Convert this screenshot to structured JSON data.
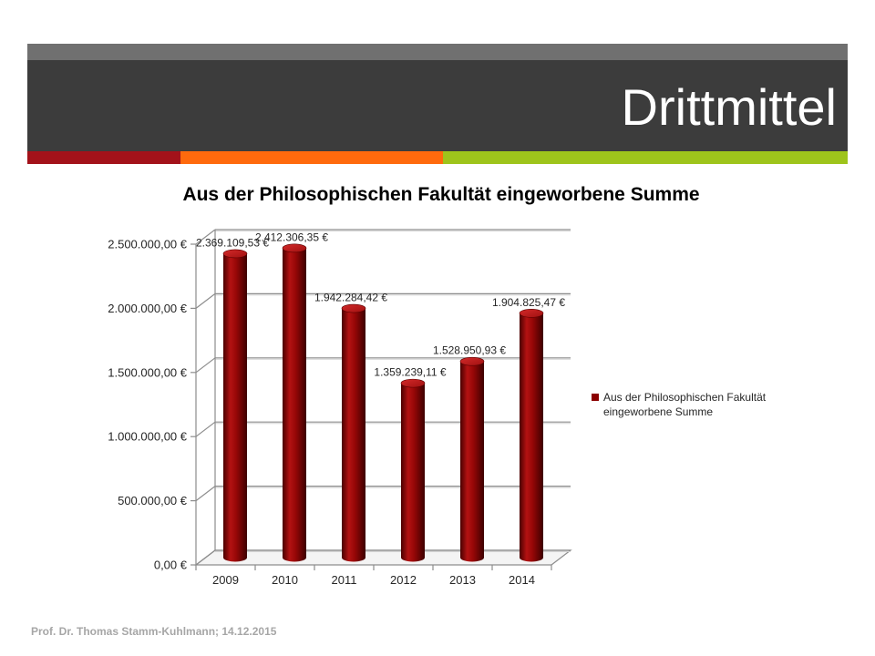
{
  "slide": {
    "title": "Drittmittel",
    "footer": "Prof. Dr. Thomas Stamm-Kuhlmann; 14.12.2015"
  },
  "theme": {
    "header_top": "#707070",
    "header": "#3c3c3c",
    "title_color": "#ffffff",
    "stripe": [
      "#a3121a",
      "#ff6a0d",
      "#9ec41b"
    ]
  },
  "chart_data": {
    "type": "bar",
    "style": "3d-cylinder",
    "title": "Aus der Philosophischen Fakultät eingeworbene Summe",
    "xlabel": "",
    "ylabel": "",
    "categories": [
      "2009",
      "2010",
      "2011",
      "2012",
      "2013",
      "2014"
    ],
    "series": [
      {
        "name": "Aus der Philosophischen Fakultät eingeworbene Summe",
        "color": "#8b0000",
        "values": [
          2369109.53,
          2412306.35,
          1942284.42,
          1359239.11,
          1528950.93,
          1904825.47
        ],
        "data_labels": [
          "2.369.109,53 €",
          "2.412.306,35 €",
          "1.942.284,42 €",
          "1.359.239,11 €",
          "1.528.950,93 €",
          "1.904.825,47 €"
        ]
      }
    ],
    "ylim": [
      0,
      2500000
    ],
    "yticks": [
      0,
      500000,
      1000000,
      1500000,
      2000000,
      2500000
    ],
    "ytick_labels": [
      "0,00 €",
      "500.000,00 €",
      "1.000.000,00 €",
      "1.500.000,00 €",
      "2.000.000,00 €",
      "2.500.000,00 €"
    ],
    "grid": true,
    "legend_position": "right"
  }
}
